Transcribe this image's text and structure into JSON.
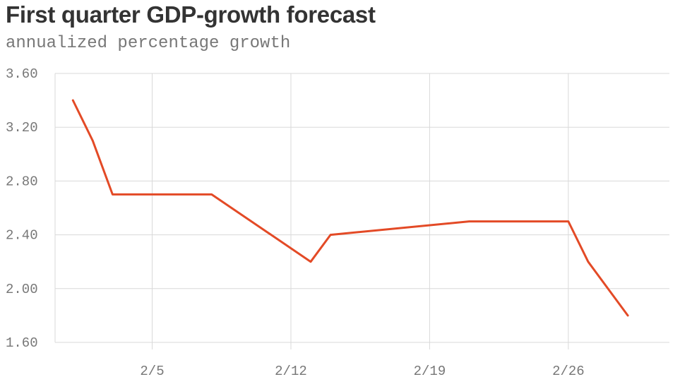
{
  "chart_data": {
    "type": "line",
    "title": "First quarter GDP-growth forecast",
    "subtitle": "annualized percentage growth",
    "xlabel": "",
    "ylabel": "",
    "x_tick_labels": [
      "2/5",
      "2/12",
      "2/19",
      "2/26"
    ],
    "x_tick_days": [
      5,
      12,
      19,
      26
    ],
    "y_tick_labels": [
      "3.60",
      "3.20",
      "2.80",
      "2.40",
      "2.00",
      "1.60"
    ],
    "y_ticks": [
      3.6,
      3.2,
      2.8,
      2.4,
      2.0,
      1.6
    ],
    "ylim": [
      1.6,
      3.6
    ],
    "xlim": [
      0.1,
      31.1
    ],
    "grid": true,
    "line_color": "#e34a26",
    "series": [
      {
        "x": [
          1,
          2,
          3,
          8,
          13,
          14,
          21,
          26,
          27,
          29
        ],
        "y": [
          3.4,
          3.1,
          2.7,
          2.7,
          2.2,
          2.4,
          2.5,
          2.5,
          2.2,
          1.8
        ]
      }
    ]
  }
}
